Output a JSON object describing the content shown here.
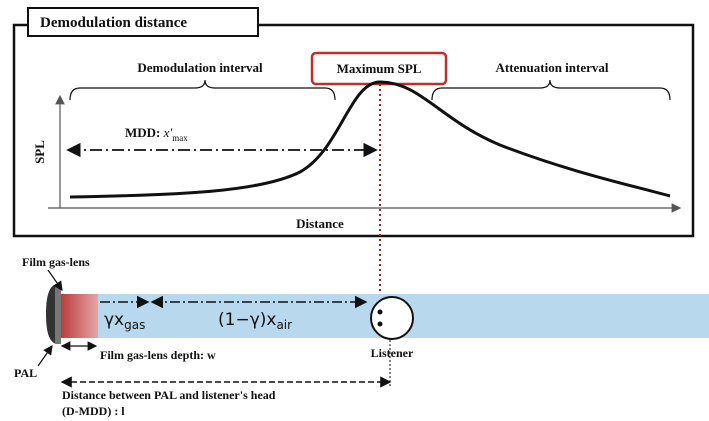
{
  "panel": {
    "title": "Demodulation distance",
    "demodulation_interval": "Demodulation interval",
    "maximum_spl": "Maximum SPL",
    "attenuation_interval": "Attenuation interval",
    "y_axis": "SPL",
    "x_axis": "Distance",
    "mdd": {
      "label": "MDD:",
      "symbol": "x′",
      "subscript": "max"
    }
  },
  "setup": {
    "film_gas_lens": "Film gas-lens",
    "gas_term": {
      "symbol": "γx",
      "subscript": "gas"
    },
    "air_term": {
      "symbol": "(1−γ)x",
      "subscript": "air"
    },
    "listener": "Listener",
    "pal": "PAL",
    "film_depth": "Film gas-lens depth: w",
    "distance_line1": "Distance between PAL and listener's head",
    "distance_line2": "(D-MDD) : l"
  }
}
